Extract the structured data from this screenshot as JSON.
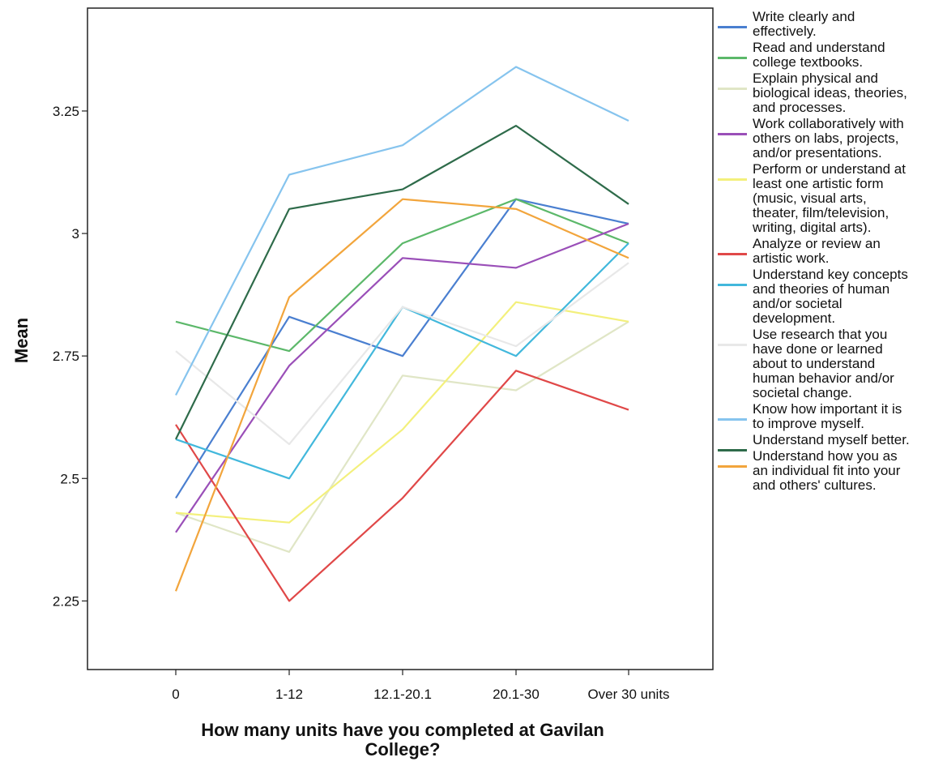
{
  "chart_data": {
    "type": "line",
    "title": "",
    "xlabel": "How many units have you completed at Gavilan College?",
    "ylabel": "Mean",
    "categories": [
      "0",
      "1-12",
      "12.1-20.1",
      "20.1-30",
      "Over 30 units"
    ],
    "yticks": [
      "2.25",
      "2.5",
      "2.75",
      "3",
      "3.25"
    ],
    "ylim": [
      2.11,
      3.46
    ],
    "grid": false,
    "legend_position": "right",
    "series": [
      {
        "name": "Write clearly and\neffectively.",
        "color": "#4a7fd0",
        "values": [
          2.46,
          2.83,
          2.75,
          3.07,
          3.02
        ]
      },
      {
        "name": "Read and understand\ncollege textbooks.",
        "color": "#5cb86a",
        "values": [
          2.82,
          2.76,
          2.98,
          3.07,
          2.98
        ]
      },
      {
        "name": "Explain physical and\nbiological ideas, theories,\nand processes.",
        "color": "#e0e6c6",
        "values": [
          2.43,
          2.35,
          2.71,
          2.68,
          2.82
        ]
      },
      {
        "name": "Work collaboratively with\nothers on labs, projects,\nand/or presentations.",
        "color": "#9a4fb8",
        "values": [
          2.39,
          2.73,
          2.95,
          2.93,
          3.02
        ]
      },
      {
        "name": "Perform or understand at\nleast one artistic form\n(music, visual arts,\ntheater, film/television,\nwriting, digital arts).",
        "color": "#f3f07c",
        "values": [
          2.43,
          2.41,
          2.6,
          2.86,
          2.82
        ]
      },
      {
        "name": "Analyze or review an\nartistic work.",
        "color": "#e04848",
        "values": [
          2.61,
          2.25,
          2.46,
          2.72,
          2.64
        ]
      },
      {
        "name": "Understand key concepts\nand theories of human\nand/or societal\ndevelopment.",
        "color": "#42b8dc",
        "values": [
          2.58,
          2.5,
          2.85,
          2.75,
          2.98
        ]
      },
      {
        "name": "Use research that you\nhave done or learned\nabout to understand\nhuman behavior and/or\nsocietal change.",
        "color": "#e8e8e8",
        "values": [
          2.76,
          2.57,
          2.85,
          2.77,
          2.94
        ]
      },
      {
        "name": "Know how important it is\nto improve myself.",
        "color": "#86c4ee",
        "values": [
          2.67,
          3.12,
          3.18,
          3.34,
          3.23
        ]
      },
      {
        "name": "Understand myself better.",
        "color": "#2e6b4a",
        "values": [
          2.58,
          3.05,
          3.09,
          3.22,
          3.06
        ]
      },
      {
        "name": "Understand how you as\nan individual fit into your\nand others' cultures.",
        "color": "#f2a53c",
        "values": [
          2.27,
          2.87,
          3.07,
          3.05,
          2.95
        ]
      }
    ]
  }
}
